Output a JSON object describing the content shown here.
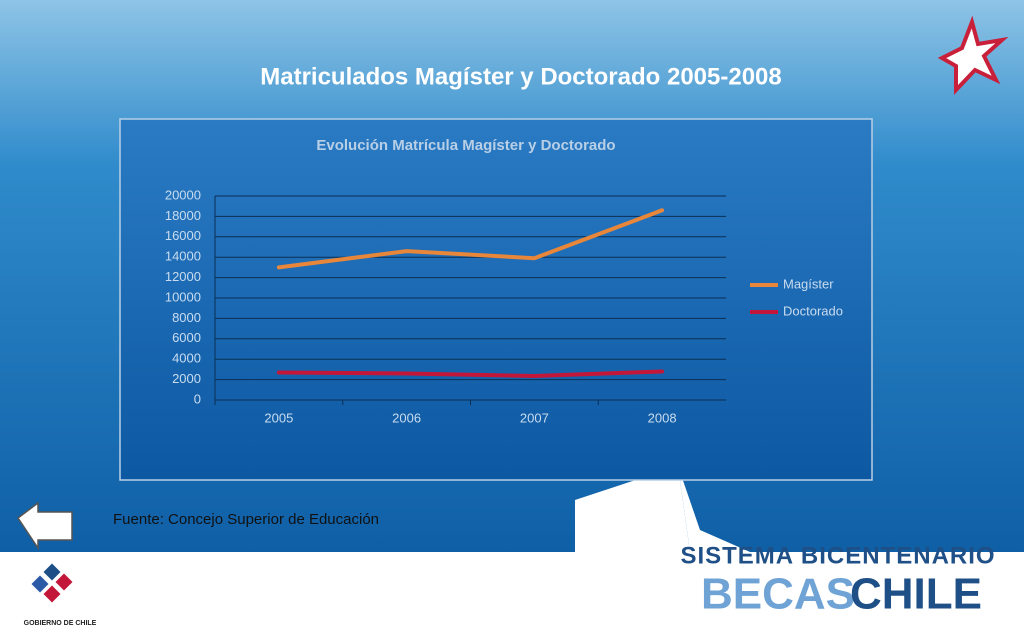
{
  "slide": {
    "title": "Matriculados Magíster y Doctorado 2005-2008",
    "source": "Fuente: Concejo Superior de Educación",
    "brand_top": "SISTEMA BICENTENARIO",
    "brand_left": "BECAS",
    "brand_right": "CHILE",
    "government": "GOBIERNO DE CHILE"
  },
  "chart_data": {
    "type": "line",
    "title": "Evolución Matrícula Magíster y Doctorado",
    "categories": [
      "2005",
      "2006",
      "2007",
      "2008"
    ],
    "series": [
      {
        "name": "Magíster",
        "color": "#e8863a",
        "values": [
          13000,
          14600,
          13900,
          18600
        ]
      },
      {
        "name": "Doctorado",
        "color": "#c3173a",
        "values": [
          2700,
          2600,
          2350,
          2800
        ]
      }
    ],
    "ylim": [
      0,
      20000
    ],
    "yticks": [
      0,
      2000,
      4000,
      6000,
      8000,
      10000,
      12000,
      14000,
      16000,
      18000,
      20000
    ],
    "grid": true,
    "legend": "right"
  }
}
